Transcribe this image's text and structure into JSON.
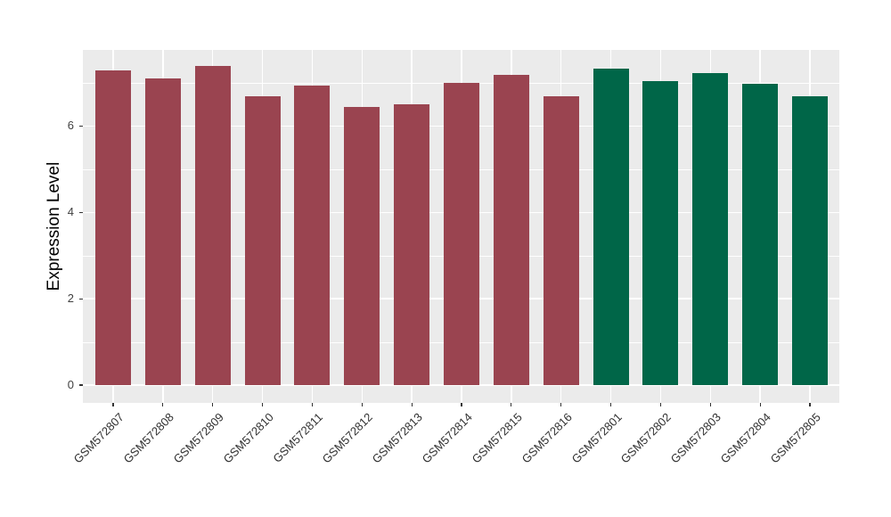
{
  "figure": {
    "panel_background": "#EBEBEB",
    "grid_color": "#FFFFFF",
    "axis_text_color": "#404040",
    "tick_mark_color": "#333333"
  },
  "chart_data": {
    "type": "bar",
    "title": "",
    "xlabel": "",
    "ylabel": "Expression Level",
    "categories": [
      "GSM572807",
      "GSM572808",
      "GSM572809",
      "GSM572810",
      "GSM572811",
      "GSM572812",
      "GSM572813",
      "GSM572814",
      "GSM572815",
      "GSM572816",
      "GSM572801",
      "GSM572802",
      "GSM572803",
      "GSM572804",
      "GSM572805"
    ],
    "values": [
      7.29,
      7.1,
      7.4,
      6.69,
      6.93,
      6.45,
      6.5,
      7.0,
      7.18,
      6.7,
      7.33,
      7.04,
      7.23,
      6.98,
      6.69
    ],
    "bar_colors": [
      "#9A4450",
      "#9A4450",
      "#9A4450",
      "#9A4450",
      "#9A4450",
      "#9A4450",
      "#9A4450",
      "#9A4450",
      "#9A4450",
      "#9A4450",
      "#006648",
      "#006648",
      "#006648",
      "#006648",
      "#006648"
    ],
    "color_groups": [
      {
        "color": "#9A4450",
        "first_category": "GSM572807",
        "last_category": "GSM572816"
      },
      {
        "color": "#006648",
        "first_category": "GSM572801",
        "last_category": "GSM572805"
      }
    ],
    "ylim": [
      -0.4,
      7.8
    ],
    "yticks": [
      0,
      2,
      4,
      6
    ],
    "yticks_minor": [
      1,
      3,
      5,
      7
    ],
    "grid": true,
    "legend": "none",
    "x_label_rotation_deg": 45
  }
}
